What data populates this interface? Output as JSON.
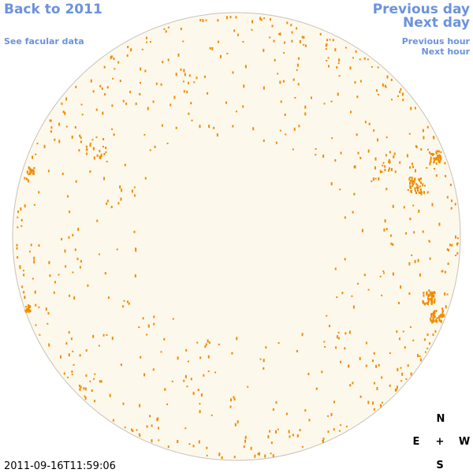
{
  "links": {
    "back": "Back to 2011",
    "previous_day": "Previous day",
    "next_day": "Next day",
    "see_facular": "See facular data",
    "previous_hour": "Previous hour",
    "next_hour": "Next hour"
  },
  "timestamp": "2011-09-16T11:59:06",
  "compass": {
    "north": "N",
    "east": "E",
    "center": "+",
    "west": "W",
    "south": "S"
  }
}
